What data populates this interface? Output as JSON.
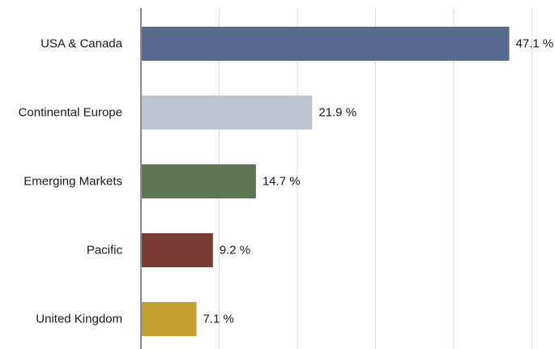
{
  "chart_data": {
    "type": "bar",
    "orientation": "horizontal",
    "categories": [
      "USA & Canada",
      "Continental Europe",
      "Emerging Markets",
      "Pacific",
      "United Kingdom"
    ],
    "values": [
      47.1,
      21.9,
      14.7,
      9.2,
      7.1
    ],
    "value_labels": [
      "47.1 %",
      "21.9 %",
      "14.7 %",
      "9.2 %",
      "7.1 %"
    ],
    "colors": [
      "#58698f",
      "#c0c5d1",
      "#5c7752",
      "#7a3b35",
      "#c49f30"
    ],
    "xlim": [
      0,
      50
    ],
    "x_grid_step": 10,
    "grid": true,
    "title": "",
    "xlabel": "",
    "ylabel": ""
  }
}
